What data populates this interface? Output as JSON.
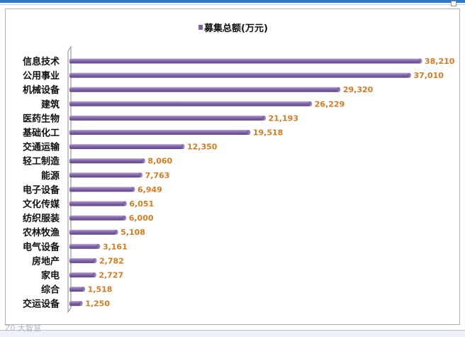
{
  "chart_data": {
    "type": "bar",
    "orientation": "horizontal",
    "title": "",
    "legend": {
      "entries": [
        "募集总额(万元)"
      ],
      "placement": "top-center"
    },
    "series": [
      {
        "name": "募集总额(万元)",
        "values": [
          38210,
          37010,
          29320,
          26229,
          21193,
          19518,
          12350,
          8060,
          7763,
          6949,
          6051,
          6000,
          5108,
          3161,
          2782,
          2727,
          1518,
          1250
        ]
      }
    ],
    "categories": [
      "信息技术",
      "公用事业",
      "机械设备",
      "建筑",
      "医药生物",
      "基础化工",
      "交通运输",
      "轻工制造",
      "能源",
      "电子设备",
      "文化传媒",
      "纺织服装",
      "农林牧渔",
      "电气设备",
      "房地产",
      "家电",
      "综合",
      "交运设备"
    ],
    "value_labels": [
      "38,210",
      "37,010",
      "29,320",
      "26,229",
      "21,193",
      "19,518",
      "12,350",
      "8,060",
      "7,763",
      "6,949",
      "6,051",
      "6,000",
      "5,108",
      "3,161",
      "2,782",
      "2,727",
      "1,518",
      "1,250"
    ],
    "xlim": [
      0,
      38210
    ],
    "grid": false,
    "colors": {
      "bar": "#8064a2",
      "bar_highlight": "#b39fd0",
      "bar_shadow": "#5b4480",
      "value_label": "#d87a1f"
    }
  },
  "watermark": "Z0 大智慧"
}
